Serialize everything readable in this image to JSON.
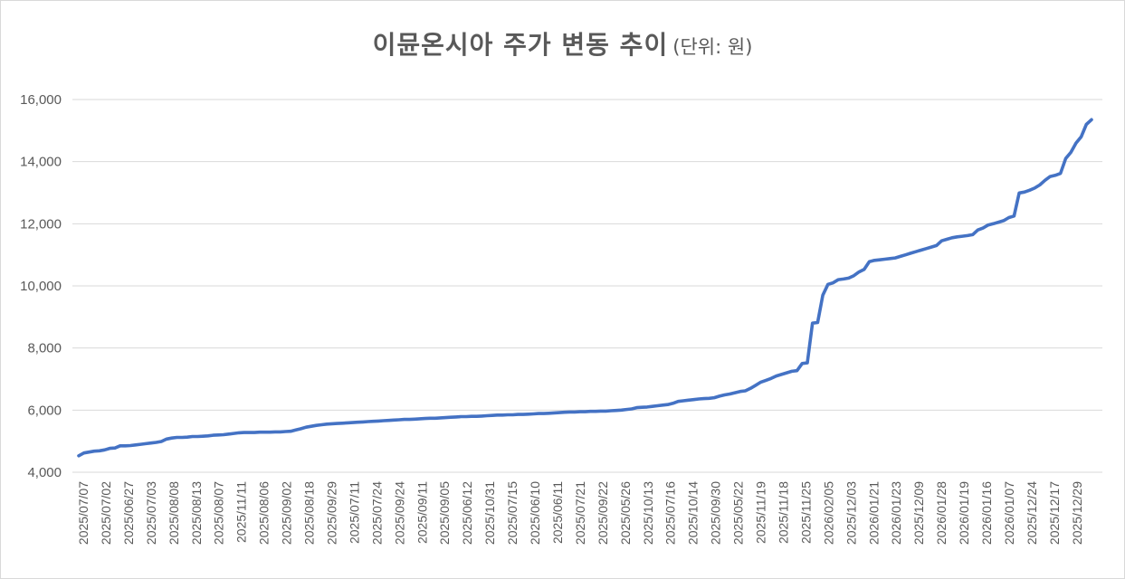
{
  "chart_data": {
    "type": "line",
    "title": "이뮨온시아 주가 변동 추이",
    "subtitle": "(단위: 원)",
    "xlabel": "",
    "ylabel": "",
    "ylim": [
      4000,
      16000
    ],
    "ytick_values": [
      4000,
      6000,
      8000,
      10000,
      12000,
      14000,
      16000
    ],
    "ytick_labels": [
      "4,000",
      "6,000",
      "8,000",
      "10,000",
      "12,000",
      "14,000",
      "16,000"
    ],
    "grid": true,
    "legend": "none",
    "line_color": "#4472C4",
    "x_tick_labels": [
      "2025/07/07",
      "2025/07/02",
      "2025/06/27",
      "2025/07/03",
      "2025/08/08",
      "2025/08/13",
      "2025/08/07",
      "2025/11/11",
      "2025/08/06",
      "2025/09/02",
      "2025/08/18",
      "2025/09/29",
      "2025/07/11",
      "2025/07/24",
      "2025/09/24",
      "2025/09/11",
      "2025/09/05",
      "2025/06/12",
      "2025/10/31",
      "2025/07/15",
      "2025/06/10",
      "2025/06/11",
      "2025/07/21",
      "2025/09/22",
      "2025/05/26",
      "2025/10/13",
      "2025/07/16",
      "2025/10/14",
      "2025/09/30",
      "2025/05/22",
      "2025/11/19",
      "2025/11/18",
      "2025/11/25",
      "2026/02/05",
      "2025/12/03",
      "2026/01/21",
      "2026/01/23",
      "2025/12/09",
      "2026/01/28",
      "2026/01/19",
      "2026/01/16",
      "2026/01/07",
      "2025/12/24",
      "2025/12/17",
      "2025/12/29"
    ],
    "series": [
      {
        "values": [
          4530,
          4620,
          4650,
          4680,
          4690,
          4720,
          4770,
          4780,
          4850,
          4850,
          4860,
          4880,
          4900,
          4920,
          4940,
          4960,
          4990,
          5070,
          5100,
          5120,
          5120,
          5130,
          5150,
          5150,
          5160,
          5170,
          5190,
          5200,
          5210,
          5230,
          5250,
          5270,
          5280,
          5280,
          5280,
          5290,
          5290,
          5290,
          5300,
          5300,
          5310,
          5320,
          5360,
          5400,
          5450,
          5480,
          5510,
          5530,
          5550,
          5560,
          5570,
          5580,
          5590,
          5600,
          5610,
          5620,
          5630,
          5640,
          5650,
          5660,
          5670,
          5680,
          5690,
          5700,
          5700,
          5710,
          5720,
          5730,
          5740,
          5740,
          5750,
          5760,
          5770,
          5780,
          5790,
          5790,
          5800,
          5800,
          5810,
          5820,
          5830,
          5840,
          5840,
          5850,
          5850,
          5860,
          5860,
          5870,
          5880,
          5890,
          5890,
          5900,
          5910,
          5920,
          5930,
          5940,
          5940,
          5950,
          5950,
          5960,
          5960,
          5970,
          5970,
          5980,
          5990,
          6000,
          6020,
          6040,
          6080,
          6090,
          6100,
          6120,
          6140,
          6160,
          6180,
          6220,
          6280,
          6300,
          6320,
          6340,
          6360,
          6370,
          6380,
          6400,
          6450,
          6490,
          6520,
          6560,
          6600,
          6620,
          6700,
          6800,
          6900,
          6960,
          7020,
          7100,
          7150,
          7200,
          7250,
          7270,
          7500,
          7520,
          8800,
          8820,
          9700,
          10050,
          10100,
          10200,
          10220,
          10250,
          10330,
          10450,
          10530,
          10780,
          10820,
          10840,
          10860,
          10880,
          10900,
          10950,
          11000,
          11050,
          11100,
          11150,
          11200,
          11250,
          11300,
          11450,
          11500,
          11550,
          11580,
          11600,
          11620,
          11650,
          11800,
          11860,
          11960,
          12000,
          12050,
          12100,
          12200,
          12250,
          12990,
          13020,
          13080,
          13150,
          13250,
          13400,
          13520,
          13560,
          13620,
          14100,
          14300,
          14600,
          14800,
          15200,
          15350
        ]
      }
    ]
  }
}
